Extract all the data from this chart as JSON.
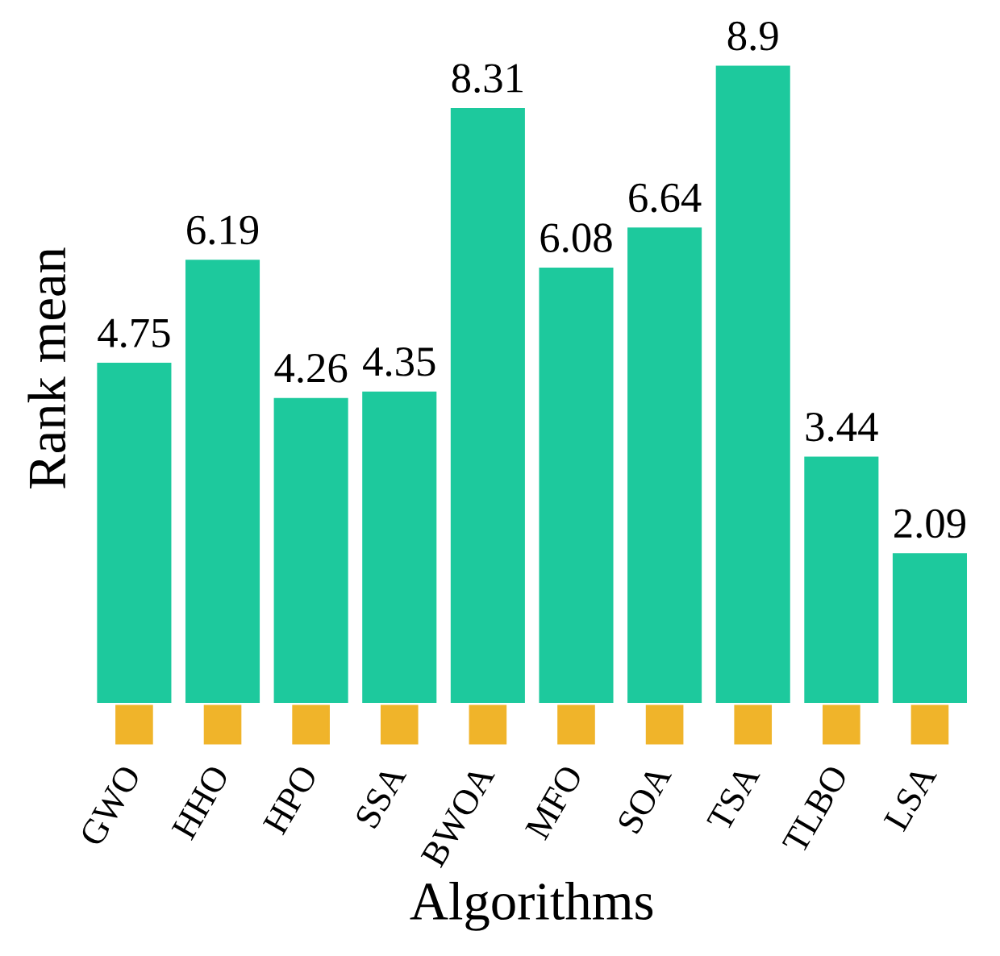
{
  "chart_data": {
    "type": "bar",
    "xlabel": "Algorithms",
    "ylabel": "Rank mean",
    "categories": [
      "GWO",
      "HHO",
      "HPO",
      "SSA",
      "BWOA",
      "MFO",
      "SOA",
      "TSA",
      "TLBO",
      "LSA"
    ],
    "values": [
      4.75,
      6.19,
      4.26,
      4.35,
      8.31,
      6.08,
      6.64,
      8.9,
      3.44,
      2.09
    ],
    "color": "#1dc99d",
    "tick_labels": "x",
    "data_labels": true,
    "grid": false,
    "legend": false
  }
}
